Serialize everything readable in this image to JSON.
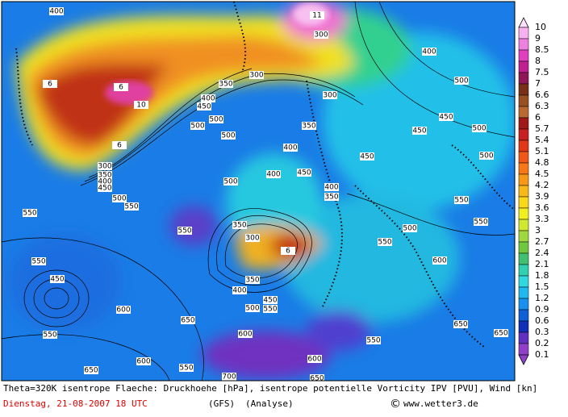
{
  "map": {
    "contour_labels": [
      "400",
      "11",
      "300",
      "400",
      "500",
      "300",
      "350",
      "400",
      "450",
      "500",
      "500",
      "500",
      "300",
      "350",
      "400",
      "450",
      "450",
      "450",
      "500",
      "500",
      "300",
      "350",
      "400",
      "450",
      "500",
      "550",
      "550",
      "500",
      "400",
      "450",
      "400",
      "350",
      "550",
      "550",
      "500",
      "550",
      "350",
      "300",
      "550",
      "550",
      "450",
      "600",
      "400",
      "350",
      "500",
      "450",
      "550",
      "600",
      "650",
      "550",
      "650",
      "650",
      "550",
      "600",
      "600",
      "600",
      "650",
      "550",
      "700",
      "650",
      "6",
      "6",
      "10",
      "6",
      "6"
    ]
  },
  "legend": {
    "labels": [
      "10",
      "9",
      "8.5",
      "8",
      "7.5",
      "7",
      "6.6",
      "6.3",
      "6",
      "5.7",
      "5.4",
      "5.1",
      "4.8",
      "4.5",
      "4.2",
      "3.9",
      "3.6",
      "3.3",
      "3",
      "2.7",
      "2.4",
      "2.1",
      "1.8",
      "1.5",
      "1.2",
      "0.9",
      "0.6",
      "0.3",
      "0.2",
      "0.1"
    ]
  },
  "footer": {
    "description": "Theta=320K isentrope Flaeche: Druckhoehe [hPa], isentrope potentielle Vorticity IPV [PVU], Wind [kn]",
    "date": "Dienstag, 21-08-2007  18 UTC",
    "model": "(GFS)",
    "run": "(Analyse)",
    "copyright": "©",
    "site": "www.wetter3.de"
  }
}
